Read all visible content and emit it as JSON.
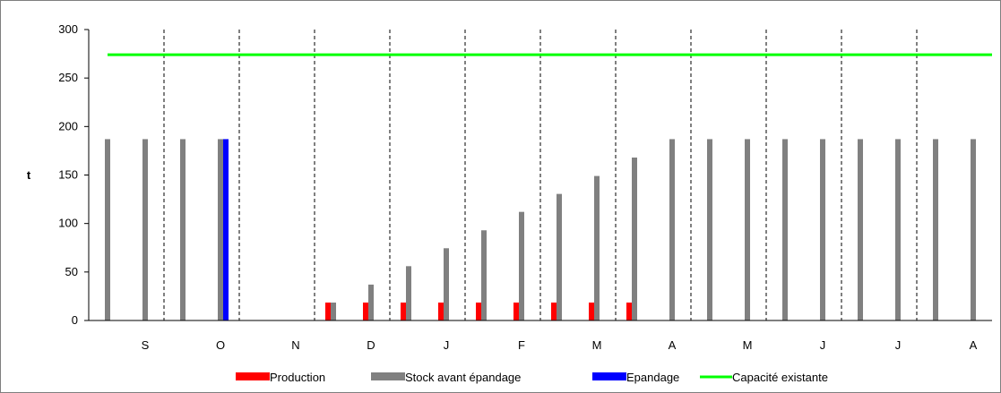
{
  "chart_data": {
    "type": "bar",
    "title": "",
    "xlabel": "",
    "ylabel": "t",
    "ylim": [
      0,
      300
    ],
    "y_ticks": [
      0,
      50,
      100,
      150,
      200,
      250,
      300
    ],
    "month_labels": [
      "S",
      "O",
      "N",
      "D",
      "J",
      "F",
      "M",
      "A",
      "M",
      "J",
      "J",
      "A"
    ],
    "periods": 24,
    "series": [
      {
        "name": "Production",
        "kind": "bar",
        "color": "#ff0000",
        "values": [
          0,
          0,
          0,
          0,
          0,
          0,
          18.5,
          18.5,
          18.5,
          18.5,
          18.5,
          18.5,
          18.5,
          18.5,
          18.5,
          0,
          0,
          0,
          0,
          0,
          0,
          0,
          0,
          0
        ]
      },
      {
        "name": "Stock avant épandage",
        "kind": "bar",
        "color": "#808080",
        "values": [
          187,
          187,
          187,
          187,
          0,
          0,
          18.5,
          37,
          56,
          74.5,
          93,
          112,
          130.5,
          149,
          168,
          187,
          187,
          187,
          187,
          187,
          187,
          187,
          187,
          187
        ]
      },
      {
        "name": "Epandage",
        "kind": "bar",
        "color": "#0000ff",
        "values": [
          0,
          0,
          0,
          187,
          0,
          0,
          0,
          0,
          0,
          0,
          0,
          0,
          0,
          0,
          0,
          0,
          0,
          0,
          0,
          0,
          0,
          0,
          0,
          0
        ]
      },
      {
        "name": "Capacité existante",
        "kind": "line",
        "color": "#00ff00",
        "value": 274
      }
    ],
    "grid": "vertical dashed separators between periods",
    "legend": "bottom"
  }
}
